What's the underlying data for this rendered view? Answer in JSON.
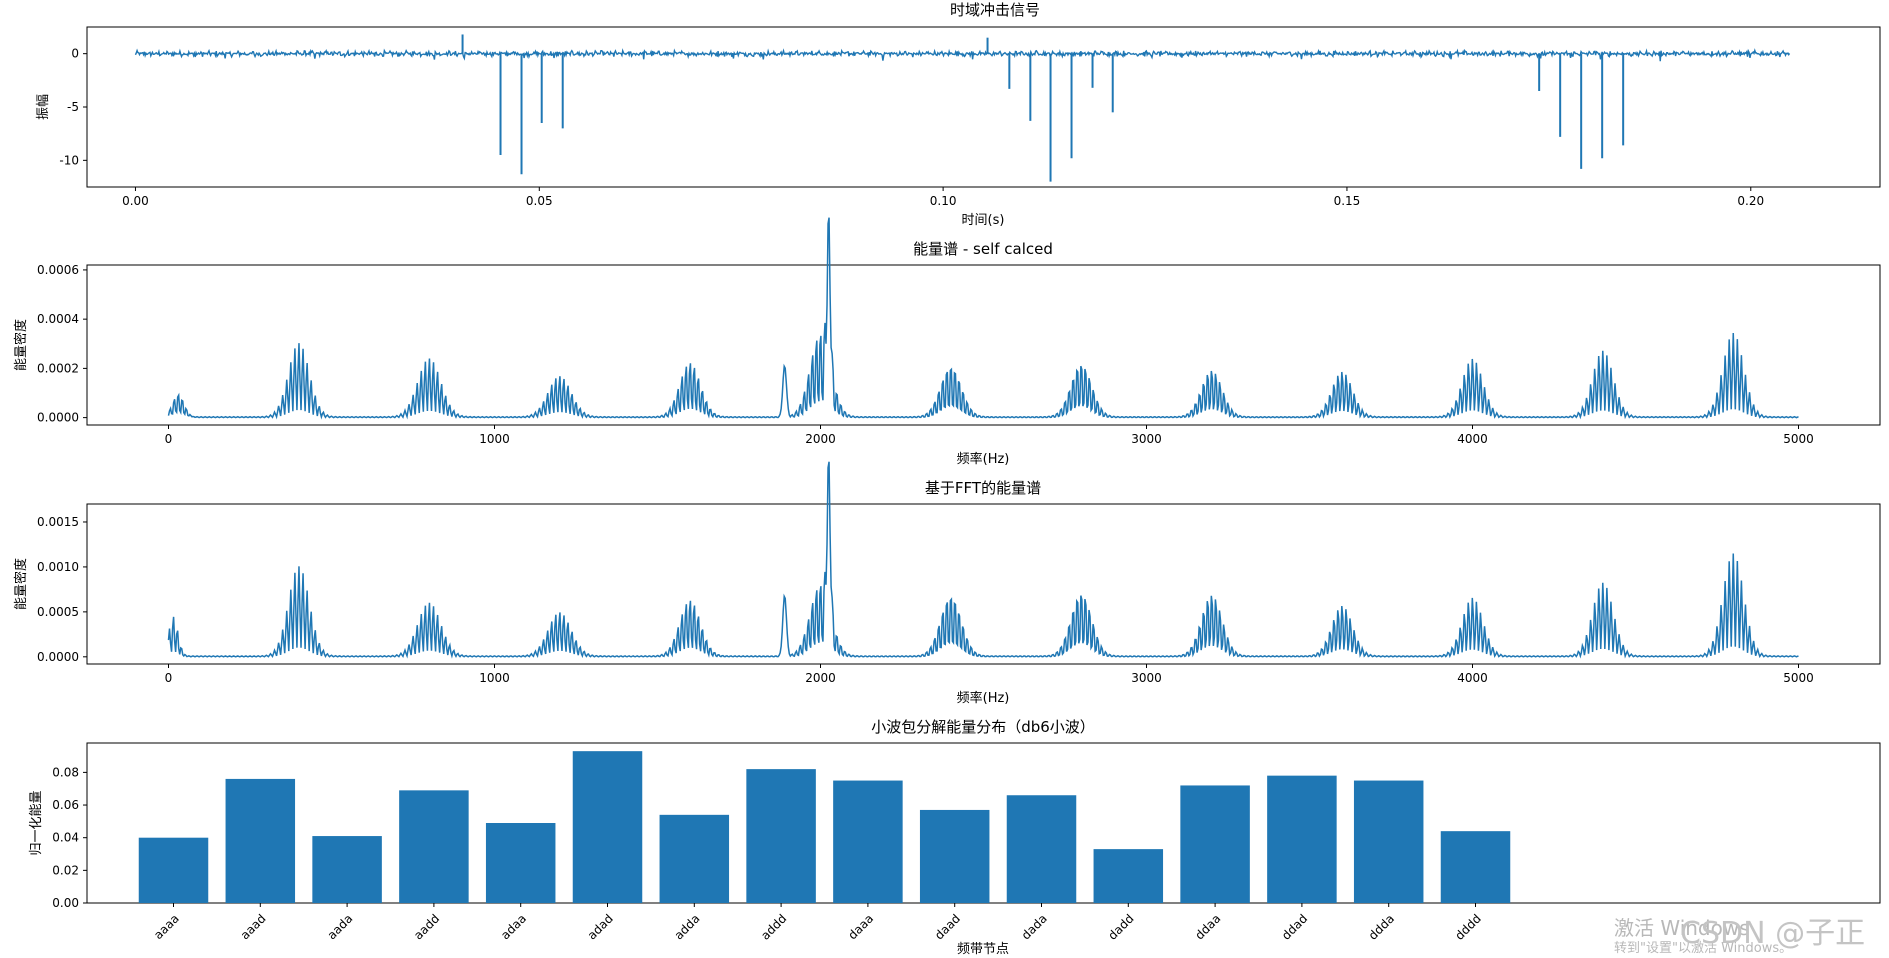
{
  "chart_data": [
    {
      "type": "line",
      "title": "时域冲击信号",
      "xlabel": "时间(s)",
      "ylabel": "振幅",
      "xlim": [
        -0.006,
        0.216
      ],
      "ylim": [
        -12.5,
        2.5
      ],
      "xticks": [
        "0.00",
        "0.05",
        "0.10",
        "0.15",
        "0.20"
      ],
      "xtick_values": [
        0.0,
        0.05,
        0.1,
        0.15,
        0.2
      ],
      "yticks": [
        "0",
        "-5",
        "-10"
      ],
      "ytick_values": [
        0,
        -5,
        -10
      ],
      "x_range": [
        0.0,
        0.2048
      ],
      "baseline_noise_amplitude": 0.3,
      "impulses": [
        {
          "x": 0.0405,
          "y": 1.8
        },
        {
          "x": 0.0452,
          "y": -9.5
        },
        {
          "x": 0.0478,
          "y": -11.3
        },
        {
          "x": 0.0503,
          "y": -6.5
        },
        {
          "x": 0.0529,
          "y": -7.0
        },
        {
          "x": 0.1055,
          "y": 1.5
        },
        {
          "x": 0.1082,
          "y": -3.3
        },
        {
          "x": 0.1108,
          "y": -6.3
        },
        {
          "x": 0.1133,
          "y": -12.0
        },
        {
          "x": 0.1159,
          "y": -9.8
        },
        {
          "x": 0.1185,
          "y": -3.2
        },
        {
          "x": 0.121,
          "y": -5.5
        },
        {
          "x": 0.1738,
          "y": -3.5
        },
        {
          "x": 0.1764,
          "y": -7.8
        },
        {
          "x": 0.179,
          "y": -10.8
        },
        {
          "x": 0.1816,
          "y": -9.8
        },
        {
          "x": 0.1842,
          "y": -8.6
        }
      ]
    },
    {
      "type": "line",
      "title": "能量谱 - self calced",
      "xlabel": "频率(Hz)",
      "ylabel": "能量密度",
      "xlim": [
        -250,
        5250
      ],
      "ylim": [
        -3e-05,
        0.00062
      ],
      "xticks": [
        "0",
        "1000",
        "2000",
        "3000",
        "4000",
        "5000"
      ],
      "xtick_values": [
        0,
        1000,
        2000,
        3000,
        4000,
        5000
      ],
      "yticks": [
        "0.0000",
        "0.0002",
        "0.0004",
        "0.0006"
      ],
      "ytick_values": [
        0,
        0.0002,
        0.0004,
        0.0006
      ],
      "x_range": [
        0,
        5000
      ],
      "peaks": [
        {
          "f": 30,
          "amp": 0.0001,
          "width": 25
        },
        {
          "f": 400,
          "amp": 0.0003,
          "width": 45
        },
        {
          "f": 800,
          "amp": 0.00024,
          "width": 50
        },
        {
          "f": 1200,
          "amp": 0.00017,
          "width": 50
        },
        {
          "f": 1600,
          "amp": 0.00023,
          "width": 45
        },
        {
          "f": 1890,
          "amp": 0.00021,
          "width": 8
        },
        {
          "f": 2000,
          "amp": 0.00036,
          "width": 45
        },
        {
          "f": 2025,
          "amp": 0.00059,
          "width": 8
        },
        {
          "f": 2400,
          "amp": 0.00022,
          "width": 45
        },
        {
          "f": 2800,
          "amp": 0.00023,
          "width": 45
        },
        {
          "f": 3200,
          "amp": 0.0002,
          "width": 45
        },
        {
          "f": 3600,
          "amp": 0.00019,
          "width": 45
        },
        {
          "f": 4000,
          "amp": 0.00024,
          "width": 45
        },
        {
          "f": 4400,
          "amp": 0.00027,
          "width": 45
        },
        {
          "f": 4800,
          "amp": 0.00034,
          "width": 45
        }
      ]
    },
    {
      "type": "line",
      "title": "基于FFT的能量谱",
      "xlabel": "频率(Hz)",
      "ylabel": "能量密度",
      "xlim": [
        -250,
        5250
      ],
      "ylim": [
        -8e-05,
        0.0017
      ],
      "xticks": [
        "0",
        "1000",
        "2000",
        "3000",
        "4000",
        "5000"
      ],
      "xtick_values": [
        0,
        1000,
        2000,
        3000,
        4000,
        5000
      ],
      "yticks": [
        "0.0000",
        "0.0005",
        "0.0010",
        "0.0015"
      ],
      "ytick_values": [
        0,
        0.0005,
        0.001,
        0.0015
      ],
      "x_range": [
        0,
        5000
      ],
      "peaks": [
        {
          "f": 15,
          "amp": 0.00045,
          "width": 20
        },
        {
          "f": 400,
          "amp": 0.001,
          "width": 45
        },
        {
          "f": 800,
          "amp": 0.0006,
          "width": 50
        },
        {
          "f": 1200,
          "amp": 0.0005,
          "width": 50
        },
        {
          "f": 1600,
          "amp": 0.00065,
          "width": 45
        },
        {
          "f": 1890,
          "amp": 0.00068,
          "width": 8
        },
        {
          "f": 2000,
          "amp": 0.00085,
          "width": 45
        },
        {
          "f": 2025,
          "amp": 0.00165,
          "width": 8
        },
        {
          "f": 2400,
          "amp": 0.00072,
          "width": 45
        },
        {
          "f": 2800,
          "amp": 0.00075,
          "width": 45
        },
        {
          "f": 3200,
          "amp": 0.00072,
          "width": 45
        },
        {
          "f": 3600,
          "amp": 0.00058,
          "width": 45
        },
        {
          "f": 4000,
          "amp": 0.00066,
          "width": 45
        },
        {
          "f": 4400,
          "amp": 0.00082,
          "width": 45
        },
        {
          "f": 4800,
          "amp": 0.00114,
          "width": 45
        }
      ]
    },
    {
      "type": "bar",
      "title": "小波包分解能量分布（db6小波）",
      "xlabel": "频带节点",
      "ylabel": "归一化能量",
      "categories": [
        "aaaa",
        "aaad",
        "aada",
        "aadd",
        "adaa",
        "adad",
        "adda",
        "addd",
        "daaa",
        "daad",
        "dada",
        "dadd",
        "ddaa",
        "ddad",
        "ddda",
        "dddd"
      ],
      "values": [
        0.04,
        0.076,
        0.041,
        0.069,
        0.049,
        0.093,
        0.054,
        0.082,
        0.075,
        0.057,
        0.066,
        0.033,
        0.072,
        0.078,
        0.075,
        0.044
      ],
      "ylim": [
        0,
        0.098
      ],
      "yticks": [
        "0.00",
        "0.02",
        "0.04",
        "0.06",
        "0.08"
      ],
      "ytick_values": [
        0,
        0.02,
        0.04,
        0.06,
        0.08
      ]
    }
  ],
  "style": {
    "line_color": "#1f77b4",
    "bar_color": "#1f77b4"
  },
  "watermark": {
    "activation_line1": "激活 Windows",
    "activation_line2": "转到\"设置\"以激活 Windows。",
    "csdn": "CSDN @子正"
  }
}
